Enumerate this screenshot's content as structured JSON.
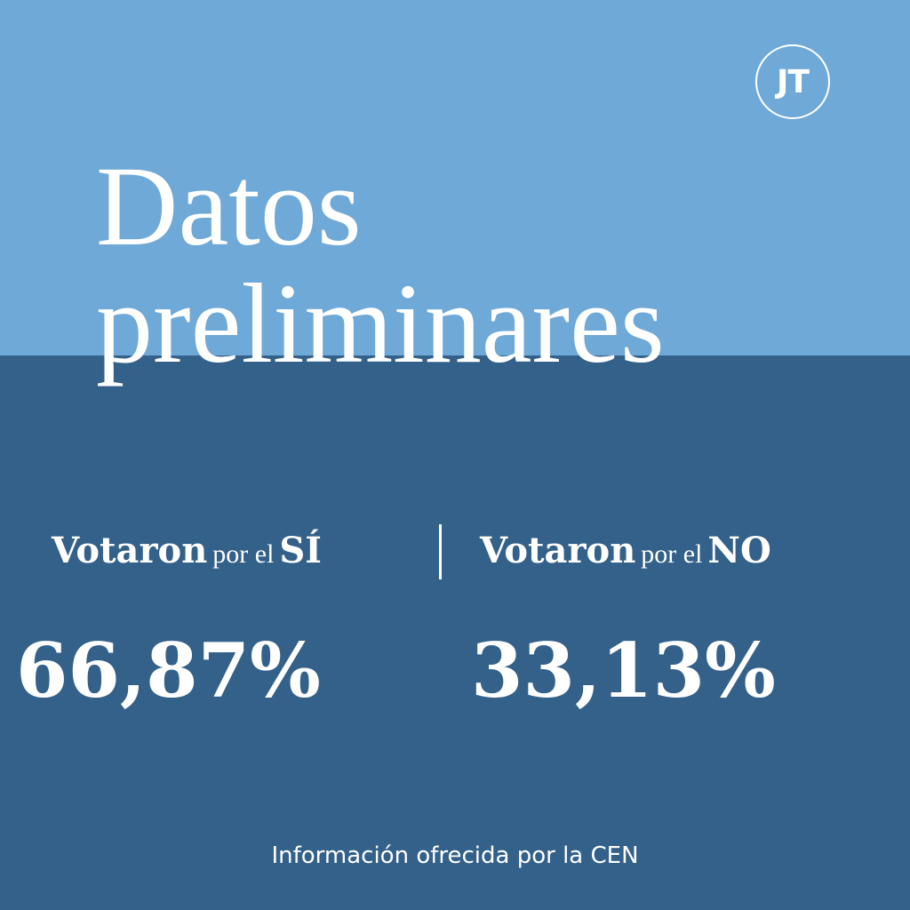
{
  "logo": "JT",
  "title": {
    "line1": "Datos",
    "line2": "preliminares"
  },
  "results": [
    {
      "verb": "Votaron",
      "prep": "por el",
      "option": "SÍ",
      "percent": "66,87%"
    },
    {
      "verb": "Votaron",
      "prep": "por el",
      "option": "NO",
      "percent": "33,13%"
    }
  ],
  "footer": "Información ofrecida por la CEN"
}
